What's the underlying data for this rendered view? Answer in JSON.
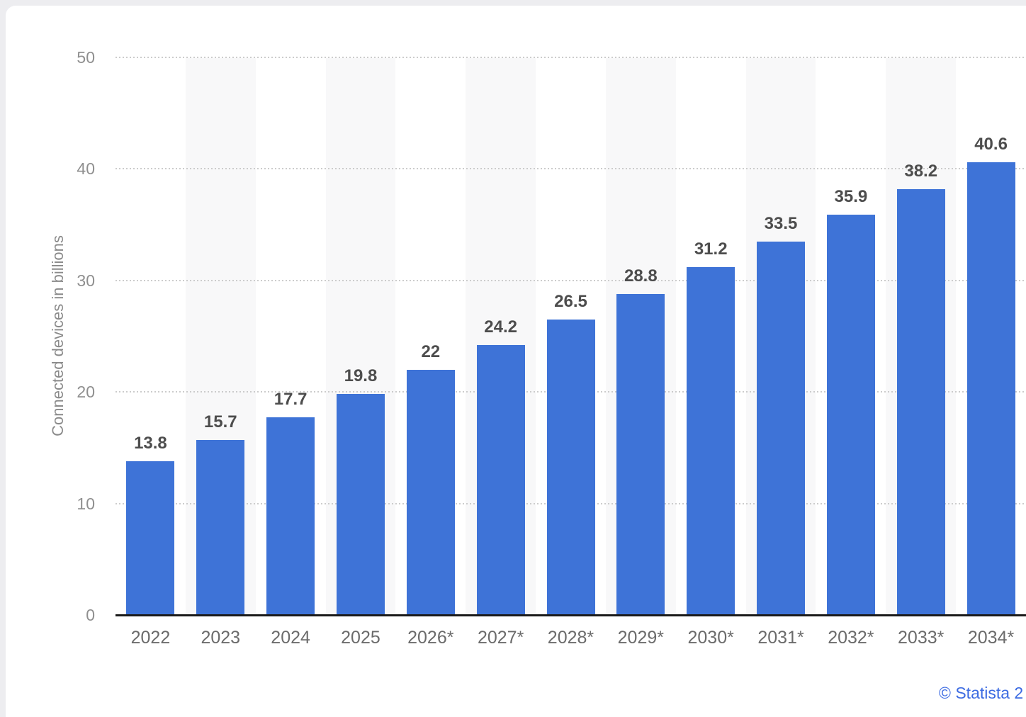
{
  "page": {
    "background_color": "#ededf0",
    "card_background_color": "#ffffff"
  },
  "chart_data": {
    "type": "bar",
    "categories": [
      "2022",
      "2023",
      "2024",
      "2025",
      "2026*",
      "2027*",
      "2028*",
      "2029*",
      "2030*",
      "2031*",
      "2032*",
      "2033*",
      "2034*"
    ],
    "values": [
      13.8,
      15.7,
      17.7,
      19.8,
      22,
      24.2,
      26.5,
      28.8,
      31.2,
      33.5,
      35.9,
      38.2,
      40.6
    ],
    "title": "",
    "xlabel": "",
    "ylabel": "Connected devices in billions",
    "ylim": [
      0,
      50
    ],
    "yticks": [
      0,
      10,
      20,
      30,
      40,
      50
    ],
    "grid": true,
    "legend": "none",
    "value_labels_shown": true,
    "bar_color": "#3e73d7",
    "band_color": "#f8f8f9",
    "gridline_color": "#cccccc",
    "axis_line_color": "#1a1a1a",
    "ytick_color": "#8f8f8f",
    "xtick_color": "#6b6b6b",
    "value_label_color": "#4d4d4d",
    "ylabel_color": "#8a8a8a"
  },
  "footer": {
    "attribution": "© Statista 2",
    "color": "#3c6be2"
  }
}
